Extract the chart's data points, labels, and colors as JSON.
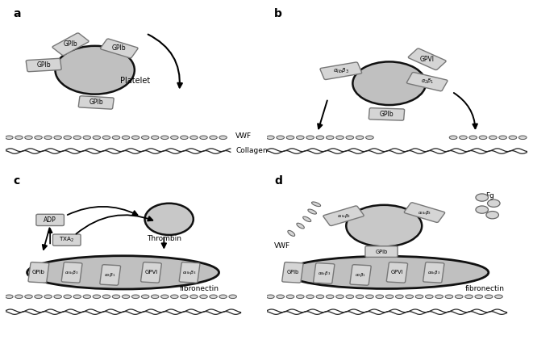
{
  "bg_color": "#ffffff",
  "platelet_color": "#c0c0c0",
  "platelet_edge": "#111111",
  "receptor_fill": "#d8d8d8",
  "receptor_edge": "#777777",
  "vwf_color": "#d0d0d0",
  "collagen_color": "#222222",
  "text_color": "#000000",
  "panel_labels": [
    "a",
    "b",
    "c",
    "d"
  ],
  "label_fontsize": 10,
  "receptor_fontsize": 5.5,
  "annotation_fontsize": 7.5
}
